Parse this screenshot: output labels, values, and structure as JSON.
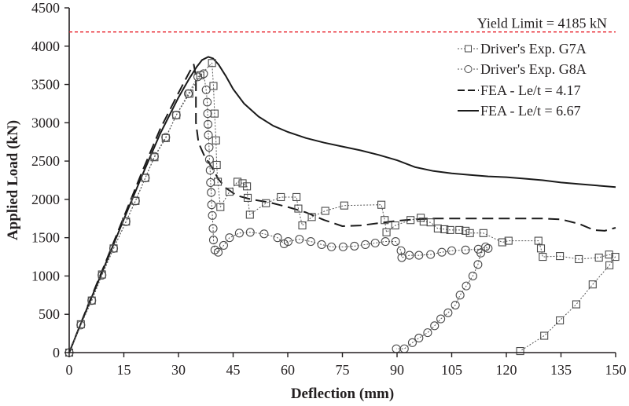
{
  "chart_data": {
    "type": "line",
    "title": "",
    "xlabel": "Deflection (mm)",
    "ylabel": "Applied Load (kN)",
    "xlim": [
      0,
      150
    ],
    "ylim": [
      0,
      4500
    ],
    "xticks": [
      0,
      15,
      30,
      45,
      60,
      75,
      90,
      105,
      120,
      135,
      150
    ],
    "yticks": [
      0,
      500,
      1000,
      1500,
      2000,
      2500,
      3000,
      3500,
      4000,
      4500
    ],
    "grid": false,
    "legend_position": "top-right",
    "reference_line": {
      "label": "Yield Limit = 4185 kN",
      "y": 4185,
      "color": "#e8202a",
      "style": "dashed"
    },
    "series": [
      {
        "name": "Driver's Exp. G7A",
        "style": "dotted",
        "marker": "square",
        "color": "#555555",
        "points": [
          [
            0,
            0
          ],
          [
            3.2,
            370
          ],
          [
            6.2,
            680
          ],
          [
            9.0,
            1020
          ],
          [
            12.2,
            1360
          ],
          [
            15.6,
            1710
          ],
          [
            18.2,
            1980
          ],
          [
            20.9,
            2280
          ],
          [
            23.4,
            2550
          ],
          [
            26.5,
            2800
          ],
          [
            29.4,
            3100
          ],
          [
            33.0,
            3380
          ],
          [
            36.0,
            3620
          ],
          [
            39.2,
            3780
          ],
          [
            39.6,
            3480
          ],
          [
            39.9,
            3120
          ],
          [
            40.3,
            2770
          ],
          [
            40.5,
            2450
          ],
          [
            40.8,
            2230
          ],
          [
            41.5,
            1900
          ],
          [
            44.0,
            2100
          ],
          [
            46.2,
            2230
          ],
          [
            47.6,
            2210
          ],
          [
            48.8,
            2170
          ],
          [
            49.0,
            2020
          ],
          [
            49.6,
            1800
          ],
          [
            54.0,
            1950
          ],
          [
            58.1,
            2030
          ],
          [
            62.4,
            2030
          ],
          [
            62.9,
            1880
          ],
          [
            64.0,
            1660
          ],
          [
            66.6,
            1770
          ],
          [
            70.3,
            1850
          ],
          [
            75.5,
            1920
          ],
          [
            85.7,
            1930
          ],
          [
            86.6,
            1730
          ],
          [
            87.1,
            1570
          ],
          [
            89.5,
            1660
          ],
          [
            93.7,
            1730
          ],
          [
            96.5,
            1760
          ],
          [
            97.3,
            1710
          ],
          [
            99.2,
            1700
          ],
          [
            101.2,
            1620
          ],
          [
            103.0,
            1610
          ],
          [
            104.6,
            1600
          ],
          [
            107.1,
            1600
          ],
          [
            108.8,
            1590
          ],
          [
            110.0,
            1560
          ],
          [
            113.7,
            1560
          ],
          [
            118.9,
            1440
          ],
          [
            120.6,
            1460
          ],
          [
            128.8,
            1460
          ],
          [
            129.5,
            1360
          ],
          [
            130.0,
            1250
          ],
          [
            134.7,
            1260
          ],
          [
            139.9,
            1220
          ],
          [
            145.4,
            1240
          ],
          [
            148.2,
            1280
          ],
          [
            149.9,
            1250
          ],
          [
            148.3,
            1140
          ],
          [
            143.7,
            890
          ],
          [
            139.2,
            630
          ],
          [
            134.7,
            420
          ],
          [
            130.4,
            220
          ],
          [
            123.8,
            20
          ]
        ]
      },
      {
        "name": "Driver's Exp. G8A",
        "style": "dotted",
        "marker": "circle",
        "color": "#555555",
        "points": [
          [
            0,
            0
          ],
          [
            3.2,
            360
          ],
          [
            6.2,
            680
          ],
          [
            9.0,
            1010
          ],
          [
            12.2,
            1360
          ],
          [
            15.6,
            1710
          ],
          [
            18.2,
            1980
          ],
          [
            20.9,
            2280
          ],
          [
            23.4,
            2560
          ],
          [
            26.5,
            2810
          ],
          [
            29.4,
            3100
          ],
          [
            32.7,
            3380
          ],
          [
            35.3,
            3600
          ],
          [
            36.9,
            3640
          ],
          [
            37.6,
            3430
          ],
          [
            37.9,
            3270
          ],
          [
            38.0,
            3120
          ],
          [
            38.1,
            2980
          ],
          [
            38.2,
            2840
          ],
          [
            38.4,
            2680
          ],
          [
            38.5,
            2520
          ],
          [
            38.7,
            2380
          ],
          [
            38.8,
            2220
          ],
          [
            39.0,
            2090
          ],
          [
            39.1,
            1930
          ],
          [
            39.3,
            1790
          ],
          [
            39.5,
            1620
          ],
          [
            39.6,
            1470
          ],
          [
            40.0,
            1340
          ],
          [
            40.9,
            1310
          ],
          [
            42.4,
            1400
          ],
          [
            44.0,
            1500
          ],
          [
            46.7,
            1560
          ],
          [
            49.7,
            1570
          ],
          [
            53.5,
            1550
          ],
          [
            57.2,
            1500
          ],
          [
            59.0,
            1420
          ],
          [
            60.1,
            1450
          ],
          [
            63.2,
            1480
          ],
          [
            66.3,
            1450
          ],
          [
            69.3,
            1410
          ],
          [
            72.0,
            1380
          ],
          [
            75.2,
            1380
          ],
          [
            78.3,
            1390
          ],
          [
            81.3,
            1410
          ],
          [
            84.0,
            1430
          ],
          [
            86.8,
            1450
          ],
          [
            89.6,
            1450
          ],
          [
            91.1,
            1330
          ],
          [
            91.3,
            1240
          ],
          [
            93.4,
            1270
          ],
          [
            96.0,
            1270
          ],
          [
            99.2,
            1280
          ],
          [
            102.3,
            1310
          ],
          [
            105.0,
            1330
          ],
          [
            108.8,
            1340
          ],
          [
            112.3,
            1350
          ],
          [
            114.3,
            1380
          ],
          [
            115.0,
            1360
          ],
          [
            113.0,
            1300
          ],
          [
            112.2,
            1150
          ],
          [
            110.8,
            1000
          ],
          [
            109.0,
            870
          ],
          [
            107.3,
            750
          ],
          [
            106.0,
            620
          ],
          [
            104.0,
            520
          ],
          [
            102.0,
            440
          ],
          [
            100.3,
            350
          ],
          [
            98.4,
            260
          ],
          [
            96.0,
            190
          ],
          [
            94.2,
            130
          ],
          [
            92.0,
            50
          ],
          [
            89.8,
            50
          ]
        ]
      },
      {
        "name": "FEA - Le/t = 4.17",
        "style": "dashed",
        "marker": "none",
        "color": "#1a1a1a",
        "points": [
          [
            0,
            0
          ],
          [
            5,
            600
          ],
          [
            10,
            1180
          ],
          [
            15,
            1770
          ],
          [
            20,
            2360
          ],
          [
            25,
            2920
          ],
          [
            30,
            3390
          ],
          [
            33,
            3660
          ],
          [
            34.2,
            3760
          ],
          [
            34.8,
            3600
          ],
          [
            34.8,
            3000
          ],
          [
            35.5,
            2740
          ],
          [
            37,
            2580
          ],
          [
            39,
            2430
          ],
          [
            41,
            2260
          ],
          [
            43,
            2150
          ],
          [
            46,
            2050
          ],
          [
            50,
            2000
          ],
          [
            55,
            1960
          ],
          [
            60,
            1900
          ],
          [
            65,
            1830
          ],
          [
            70,
            1730
          ],
          [
            75,
            1650
          ],
          [
            80,
            1660
          ],
          [
            85,
            1690
          ],
          [
            90,
            1720
          ],
          [
            95,
            1740
          ],
          [
            100,
            1750
          ],
          [
            110,
            1750
          ],
          [
            120,
            1750
          ],
          [
            130,
            1750
          ],
          [
            135,
            1740
          ],
          [
            140,
            1680
          ],
          [
            144,
            1600
          ],
          [
            147,
            1590
          ],
          [
            150,
            1630
          ]
        ]
      },
      {
        "name": "FEA - Le/t = 6.67",
        "style": "solid",
        "marker": "none",
        "color": "#1a1a1a",
        "points": [
          [
            0,
            0
          ],
          [
            5,
            590
          ],
          [
            10,
            1160
          ],
          [
            15,
            1740
          ],
          [
            20,
            2310
          ],
          [
            25,
            2860
          ],
          [
            30,
            3330
          ],
          [
            33,
            3580
          ],
          [
            35,
            3730
          ],
          [
            36.5,
            3820
          ],
          [
            38.2,
            3860
          ],
          [
            39.5,
            3840
          ],
          [
            41,
            3760
          ],
          [
            43,
            3610
          ],
          [
            45,
            3440
          ],
          [
            48,
            3250
          ],
          [
            52,
            3080
          ],
          [
            56,
            2960
          ],
          [
            60,
            2880
          ],
          [
            65,
            2800
          ],
          [
            70,
            2740
          ],
          [
            75,
            2690
          ],
          [
            80,
            2640
          ],
          [
            85,
            2580
          ],
          [
            90,
            2510
          ],
          [
            95,
            2420
          ],
          [
            100,
            2370
          ],
          [
            105,
            2340
          ],
          [
            110,
            2320
          ],
          [
            115,
            2300
          ],
          [
            120,
            2290
          ],
          [
            125,
            2270
          ],
          [
            130,
            2250
          ],
          [
            135,
            2220
          ],
          [
            140,
            2200
          ],
          [
            145,
            2180
          ],
          [
            150,
            2160
          ]
        ]
      }
    ]
  }
}
